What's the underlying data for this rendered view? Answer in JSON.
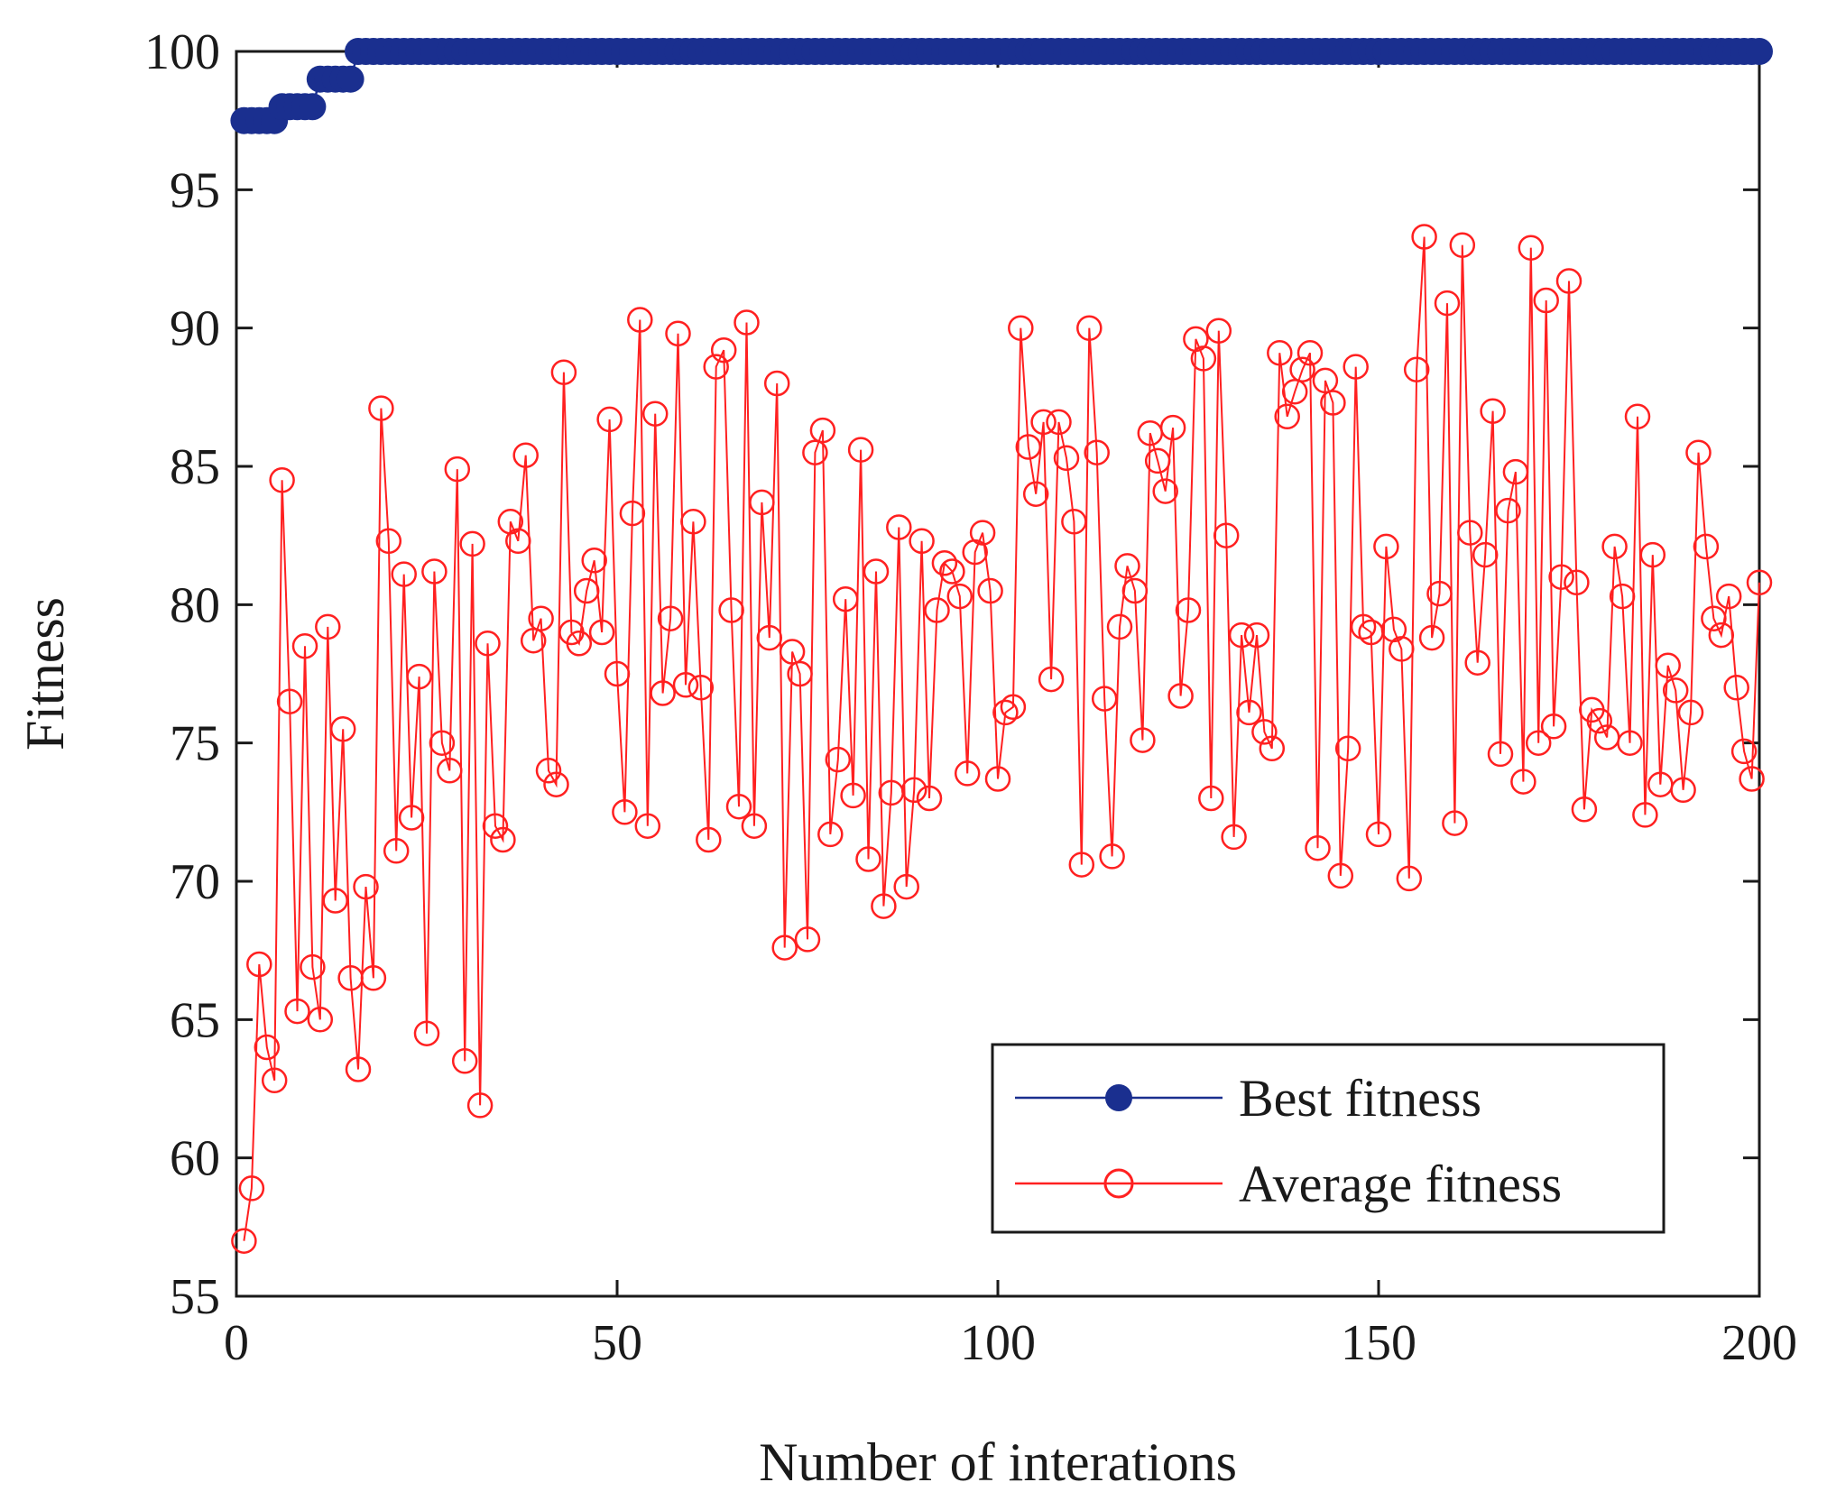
{
  "chart_data": {
    "type": "line",
    "xlabel": "Number of interations",
    "ylabel": "Fitness",
    "xlim": [
      0,
      200
    ],
    "ylim": [
      55,
      100
    ],
    "xticks": [
      0,
      50,
      100,
      150,
      200
    ],
    "yticks": [
      55,
      60,
      65,
      70,
      75,
      80,
      85,
      90,
      95,
      100
    ],
    "grid": false,
    "legend_position": "bottom-right",
    "series": [
      {
        "name": "Best fitness",
        "color": "#1a2f8f",
        "marker": "filled-circle",
        "x_start": 1,
        "values": [
          97.5,
          97.5,
          97.5,
          97.5,
          97.5,
          98,
          98,
          98,
          98,
          98,
          99,
          99,
          99,
          99,
          99,
          100,
          100,
          100,
          100,
          100,
          100,
          100,
          100,
          100,
          100,
          100,
          100,
          100,
          100,
          100,
          100,
          100,
          100,
          100,
          100,
          100,
          100,
          100,
          100,
          100,
          100,
          100,
          100,
          100,
          100,
          100,
          100,
          100,
          100,
          100,
          100,
          100,
          100,
          100,
          100,
          100,
          100,
          100,
          100,
          100,
          100,
          100,
          100,
          100,
          100,
          100,
          100,
          100,
          100,
          100,
          100,
          100,
          100,
          100,
          100,
          100,
          100,
          100,
          100,
          100,
          100,
          100,
          100,
          100,
          100,
          100,
          100,
          100,
          100,
          100,
          100,
          100,
          100,
          100,
          100,
          100,
          100,
          100,
          100,
          100,
          100,
          100,
          100,
          100,
          100,
          100,
          100,
          100,
          100,
          100,
          100,
          100,
          100,
          100,
          100,
          100,
          100,
          100,
          100,
          100,
          100,
          100,
          100,
          100,
          100,
          100,
          100,
          100,
          100,
          100,
          100,
          100,
          100,
          100,
          100,
          100,
          100,
          100,
          100,
          100,
          100,
          100,
          100,
          100,
          100,
          100,
          100,
          100,
          100,
          100,
          100,
          100,
          100,
          100,
          100,
          100,
          100,
          100,
          100,
          100,
          100,
          100,
          100,
          100,
          100,
          100,
          100,
          100,
          100,
          100,
          100,
          100,
          100,
          100,
          100,
          100,
          100,
          100,
          100,
          100,
          100,
          100,
          100,
          100,
          100,
          100,
          100,
          100,
          100,
          100,
          100,
          100,
          100,
          100,
          100,
          100,
          100,
          100,
          100,
          100
        ]
      },
      {
        "name": "Average fitness",
        "color": "#ff2020",
        "marker": "open-circle",
        "x_start": 1,
        "values": [
          57.0,
          58.9,
          67.0,
          64.0,
          62.8,
          84.5,
          76.5,
          65.3,
          78.5,
          66.9,
          65.0,
          79.2,
          69.3,
          75.5,
          66.5,
          63.2,
          69.8,
          66.5,
          87.1,
          82.3,
          71.1,
          81.1,
          72.3,
          77.4,
          64.5,
          81.2,
          75.0,
          74.0,
          84.9,
          63.5,
          82.2,
          61.9,
          78.6,
          72.0,
          71.5,
          83.0,
          82.3,
          85.4,
          78.7,
          79.5,
          74.0,
          73.5,
          88.4,
          79.0,
          78.6,
          80.5,
          81.6,
          79.0,
          86.7,
          77.5,
          72.5,
          83.3,
          90.3,
          72.0,
          86.9,
          76.8,
          79.5,
          89.8,
          77.1,
          83.0,
          77.0,
          71.5,
          88.6,
          89.2,
          79.8,
          72.7,
          90.2,
          72.0,
          83.7,
          78.8,
          88.0,
          67.6,
          78.3,
          77.5,
          67.9,
          85.5,
          86.3,
          71.7,
          74.4,
          80.2,
          73.1,
          85.6,
          70.8,
          81.2,
          69.1,
          73.2,
          82.8,
          69.8,
          73.3,
          82.3,
          73.0,
          79.8,
          81.5,
          81.2,
          80.3,
          73.9,
          81.9,
          82.6,
          80.5,
          73.7,
          76.1,
          76.3,
          90.0,
          85.7,
          84.0,
          86.6,
          77.3,
          86.6,
          85.3,
          83.0,
          70.6,
          90.0,
          85.5,
          76.6,
          70.9,
          79.2,
          81.4,
          80.5,
          75.1,
          86.2,
          85.2,
          84.1,
          86.4,
          76.7,
          79.8,
          89.6,
          88.9,
          73.0,
          89.9,
          82.5,
          71.6,
          78.9,
          76.1,
          78.9,
          75.4,
          74.8,
          89.1,
          86.8,
          87.7,
          88.5,
          89.1,
          71.2,
          88.1,
          87.3,
          70.2,
          74.8,
          88.6,
          79.2,
          79.0,
          71.7,
          82.1,
          79.1,
          78.4,
          70.1,
          88.5,
          93.3,
          78.8,
          80.4,
          90.9,
          72.1,
          93.0,
          82.6,
          77.9,
          81.8,
          87.0,
          74.6,
          83.4,
          84.8,
          73.6,
          92.9,
          75.0,
          91.0,
          75.6,
          81.0,
          91.7,
          80.8,
          72.6,
          76.2,
          75.8,
          75.2,
          82.1,
          80.3,
          75.0,
          86.8,
          72.4,
          81.8,
          73.5,
          77.8,
          76.9,
          73.3,
          76.1,
          85.5,
          82.1,
          79.5,
          78.9,
          80.3,
          77.0,
          74.7,
          73.7,
          80.8
        ]
      }
    ]
  }
}
